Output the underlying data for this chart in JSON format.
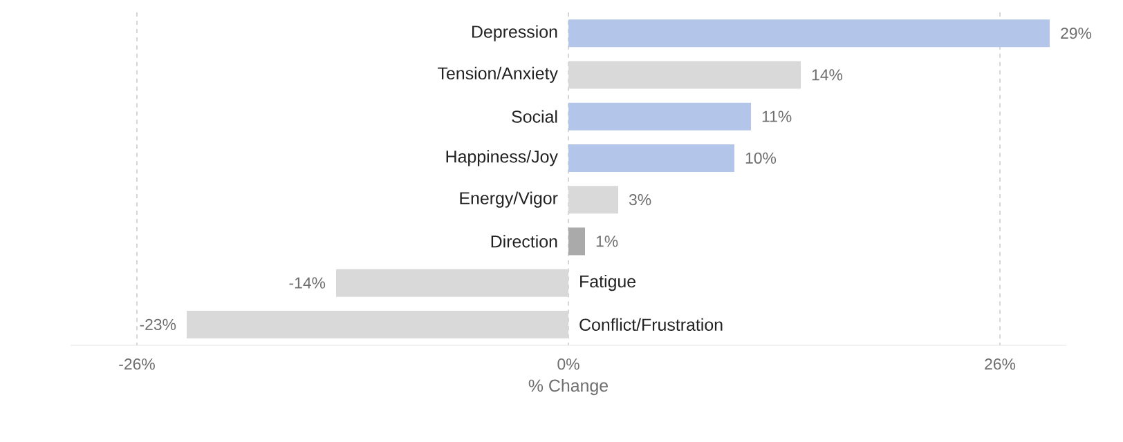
{
  "chart_data": {
    "type": "bar",
    "orientation": "horizontal",
    "xlabel": "% Change",
    "categories": [
      "Depression",
      "Tension/Anxiety",
      "Social",
      "Happiness/Joy",
      "Energy/Vigor",
      "Direction",
      "Fatigue",
      "Conflict/Frustration"
    ],
    "values": [
      29,
      14,
      11,
      10,
      3,
      1,
      -14,
      -23
    ],
    "value_labels": [
      "29%",
      "14%",
      "11%",
      "10%",
      "3%",
      "1%",
      "-14%",
      "-23%"
    ],
    "colors": [
      "#b3c5e8",
      "#d9d9d9",
      "#b3c5e8",
      "#b3c5e8",
      "#d9d9d9",
      "#aaaaaa",
      "#d9d9d9",
      "#d9d9d9"
    ],
    "xlim": [
      -30,
      30
    ],
    "xticks": [
      {
        "value": -26,
        "label": "-26%"
      },
      {
        "value": 0,
        "label": "0%"
      },
      {
        "value": 26,
        "label": "26%"
      }
    ],
    "grid": "x"
  }
}
